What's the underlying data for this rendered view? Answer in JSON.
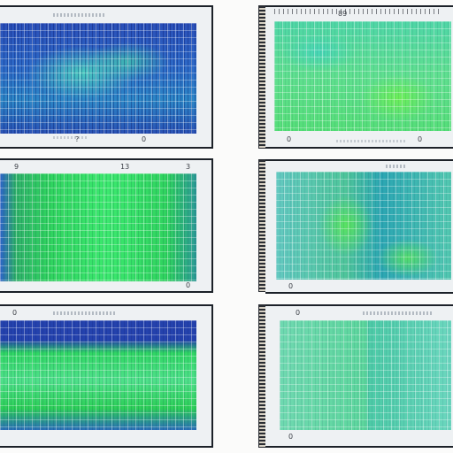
{
  "panels": [
    {
      "id": "tl",
      "glyphs": [
        "?",
        "0"
      ]
    },
    {
      "id": "tr",
      "glyphs": [
        "89",
        "0",
        "",
        "0"
      ]
    },
    {
      "id": "ml",
      "glyphs": [
        "9",
        "13",
        "3"
      ]
    },
    {
      "id": "mr",
      "glyphs": [
        "",
        "0",
        "0"
      ]
    },
    {
      "id": "bl",
      "glyphs": [
        "0",
        "0"
      ]
    },
    {
      "id": "br",
      "glyphs": [
        "0",
        "0",
        "0"
      ]
    }
  ],
  "colors": {
    "navy": "#1d3a9c",
    "blue": "#2f62c8",
    "teal": "#2fa2a0",
    "green": "#2fd868",
    "mint": "#69e0b0",
    "frame": "#1c2128"
  }
}
